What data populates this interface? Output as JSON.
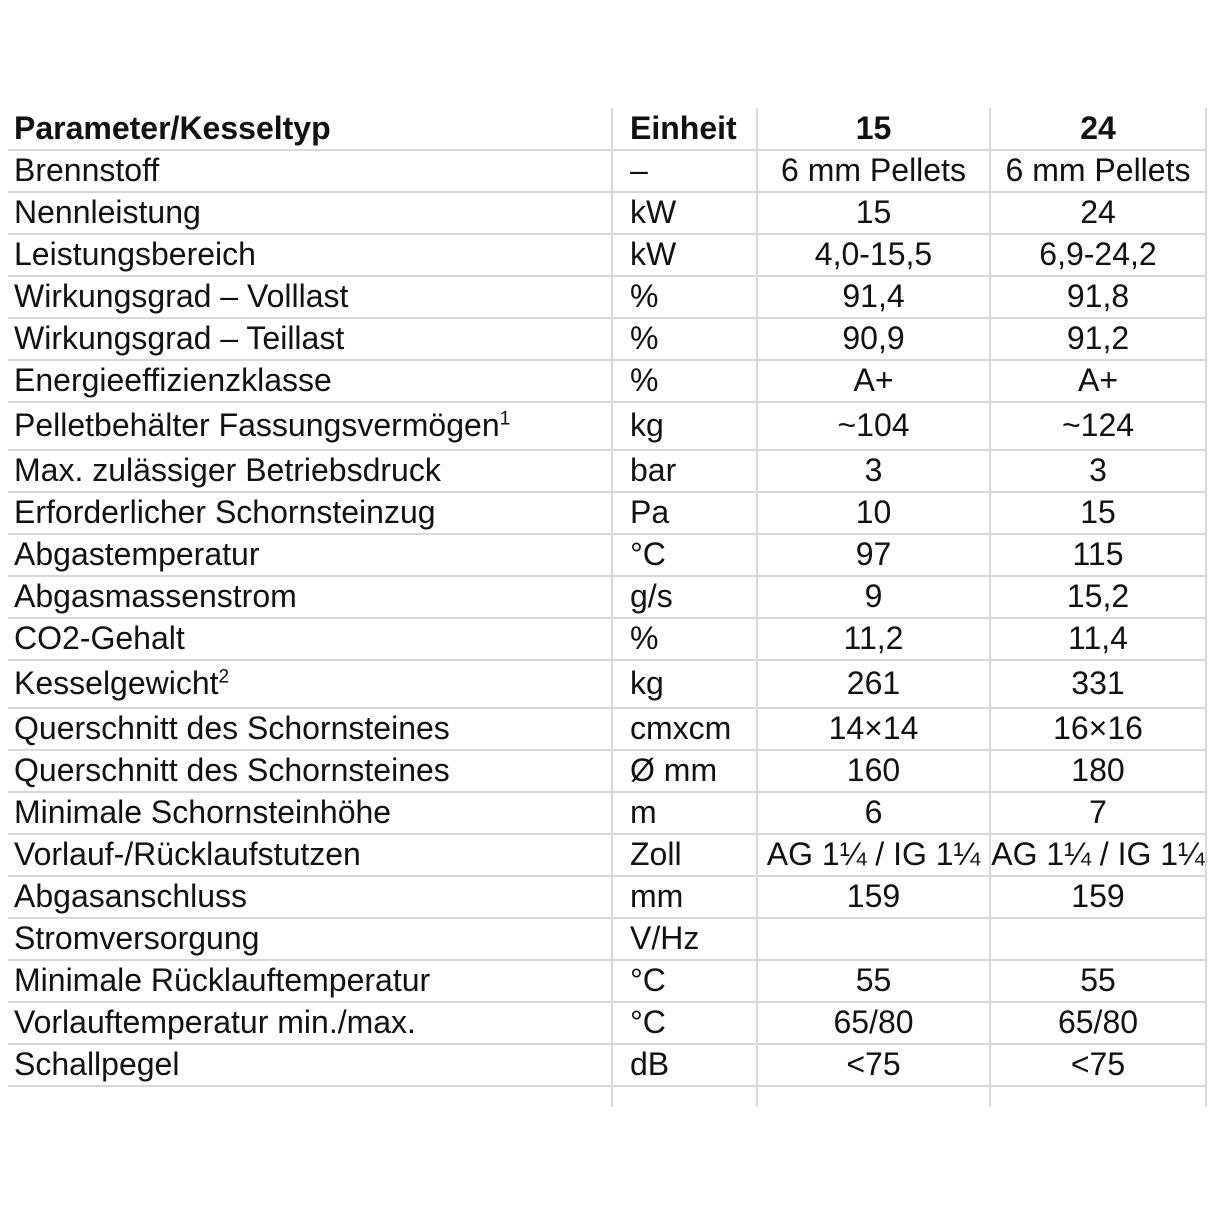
{
  "colors": {
    "background": "#ffffff",
    "text": "#111111",
    "gridline": "#d8d8d8"
  },
  "table": {
    "header": {
      "param": "Parameter/Kesseltyp",
      "unit": "Einheit",
      "model1": "15",
      "model2": "24"
    },
    "rows": [
      {
        "param": "Brennstoff",
        "sup": "",
        "unit": "–",
        "v1": "6 mm Pellets",
        "v2": "6 mm Pellets",
        "tall": false
      },
      {
        "param": "Nennleistung",
        "sup": "",
        "unit": "kW",
        "v1": "15",
        "v2": "24",
        "tall": false
      },
      {
        "param": "Leistungsbereich",
        "sup": "",
        "unit": "kW",
        "v1": "4,0-15,5",
        "v2": "6,9-24,2",
        "tall": false
      },
      {
        "param": "Wirkungsgrad – Volllast",
        "sup": "",
        "unit": "%",
        "v1": "91,4",
        "v2": "91,8",
        "tall": false
      },
      {
        "param": "Wirkungsgrad – Teillast",
        "sup": "",
        "unit": "%",
        "v1": "90,9",
        "v2": "91,2",
        "tall": false
      },
      {
        "param": "Energieeffizienzklasse",
        "sup": "",
        "unit": "%",
        "v1": "A+",
        "v2": "A+",
        "tall": false
      },
      {
        "param": "Pelletbehälter Fassungsvermögen",
        "sup": "1",
        "unit": "kg",
        "v1": "~104",
        "v2": "~124",
        "tall": true
      },
      {
        "param": "Max. zulässiger Betriebsdruck",
        "sup": "",
        "unit": "bar",
        "v1": "3",
        "v2": "3",
        "tall": false
      },
      {
        "param": "Erforderlicher Schornsteinzug",
        "sup": "",
        "unit": "Pa",
        "v1": "10",
        "v2": "15",
        "tall": false
      },
      {
        "param": "Abgastemperatur",
        "sup": "",
        "unit": "°C",
        "v1": "97",
        "v2": "115",
        "tall": false
      },
      {
        "param": "Abgasmassenstrom",
        "sup": "",
        "unit": "g/s",
        "v1": "9",
        "v2": "15,2",
        "tall": false
      },
      {
        "param": "CO2-Gehalt",
        "sup": "",
        "unit": "%",
        "v1": "11,2",
        "v2": "11,4",
        "tall": false
      },
      {
        "param": "Kesselgewicht",
        "sup": "2",
        "unit": "kg",
        "v1": "261",
        "v2": "331",
        "tall": true
      },
      {
        "param": "Querschnitt des Schornsteines",
        "sup": "",
        "unit": "cmxcm",
        "v1": "14×14",
        "v2": "16×16",
        "tall": false
      },
      {
        "param": "Querschnitt des Schornsteines",
        "sup": "",
        "unit": "Ø mm",
        "v1": "160",
        "v2": "180",
        "tall": false
      },
      {
        "param": "Minimale Schornsteinhöhe",
        "sup": "",
        "unit": "m",
        "v1": "6",
        "v2": "7",
        "tall": false
      },
      {
        "param": "Vorlauf-/Rücklaufstutzen",
        "sup": "",
        "unit": "Zoll",
        "v1": "AG 1¼ / IG 1¼",
        "v2": "AG 1¼ / IG 1¼",
        "tall": false
      },
      {
        "param": "Abgasanschluss",
        "sup": "",
        "unit": "mm",
        "v1": "159",
        "v2": "159",
        "tall": false
      },
      {
        "param": "Stromversorgung",
        "sup": "",
        "unit": "V/Hz",
        "v1": "",
        "v2": "",
        "tall": false
      },
      {
        "param": "Minimale Rücklauftemperatur",
        "sup": "",
        "unit": "°C",
        "v1": "55",
        "v2": "55",
        "tall": false
      },
      {
        "param": "Vorlauftemperatur min./max.",
        "sup": "",
        "unit": "°C",
        "v1": "65/80",
        "v2": "65/80",
        "tall": false
      },
      {
        "param": "Schallpegel",
        "sup": "",
        "unit": "dB",
        "v1": "<75",
        "v2": "<75",
        "tall": false
      }
    ]
  }
}
